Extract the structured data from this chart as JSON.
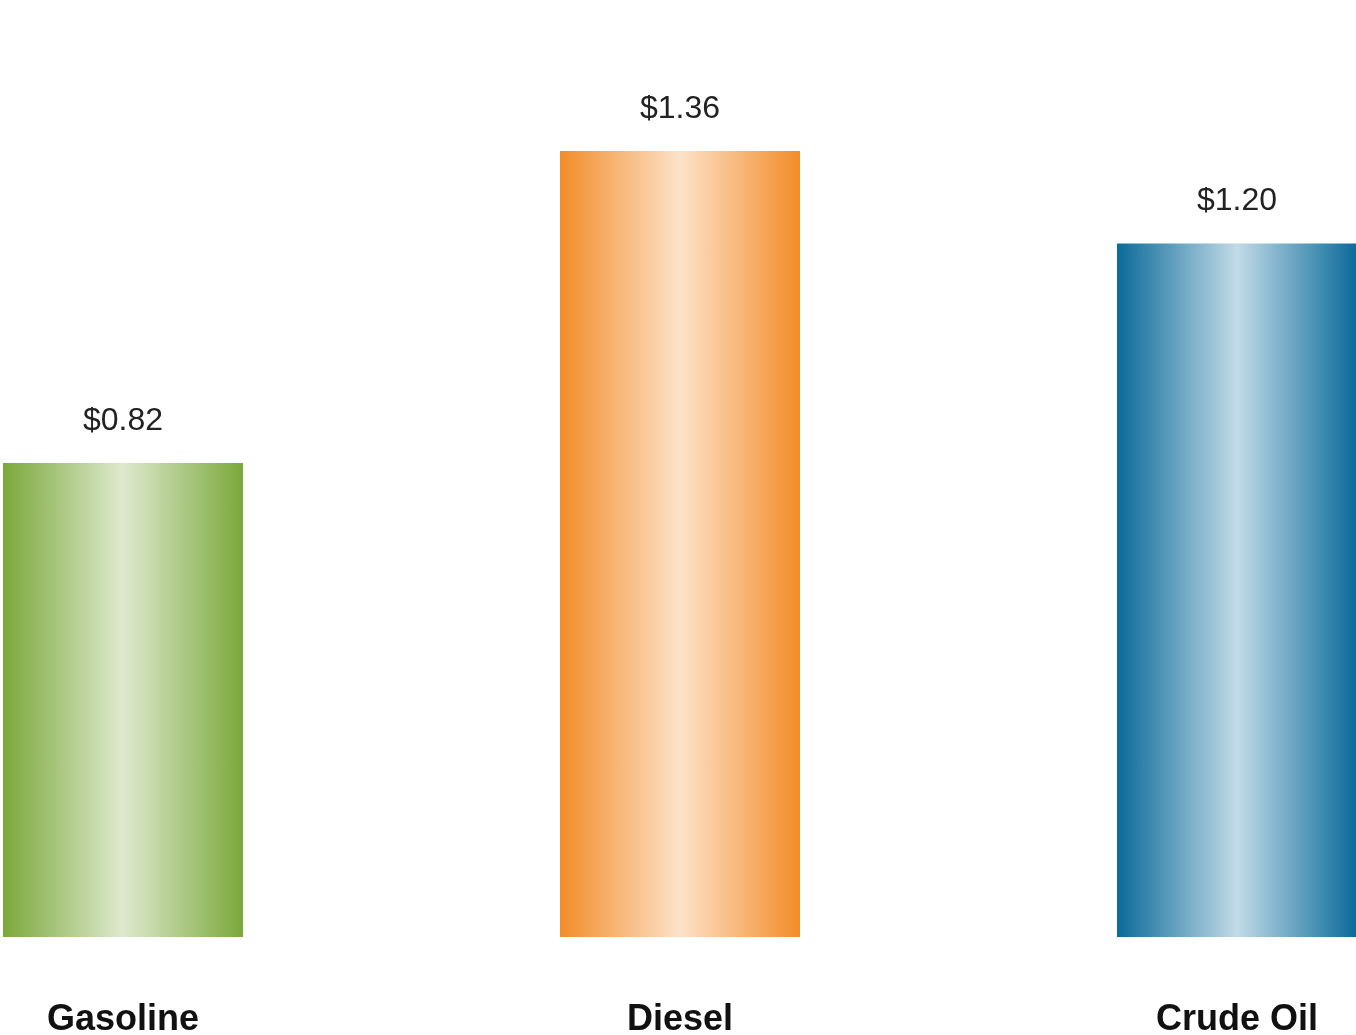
{
  "chart_data": {
    "type": "bar",
    "categories": [
      "Gasoline",
      "Diesel",
      "Crude Oil"
    ],
    "values": [
      0.82,
      1.36,
      1.2
    ],
    "colors": [
      "#7aa83a",
      "#f28c28",
      "#0a6a99"
    ],
    "value_labels": [
      "$0.82",
      "$1.36",
      "$1.20"
    ]
  }
}
